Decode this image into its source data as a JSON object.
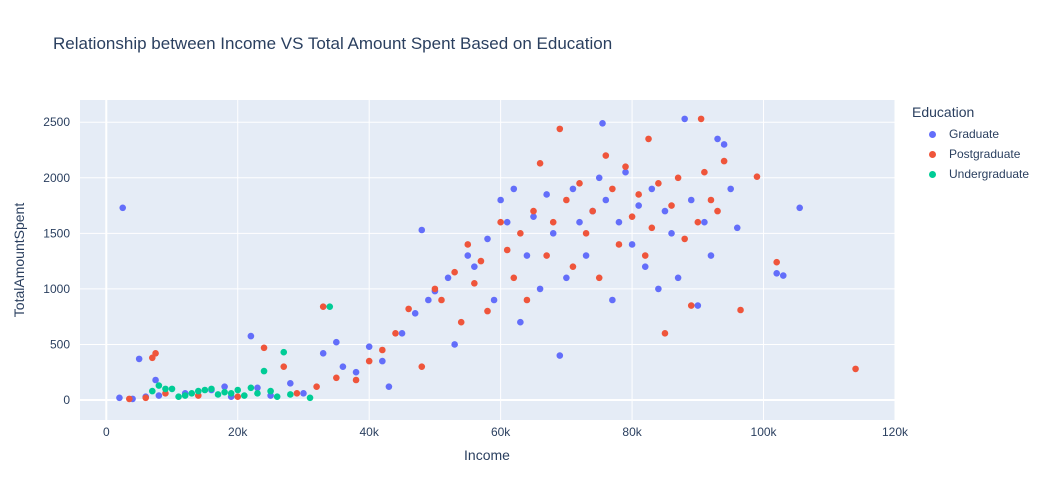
{
  "chart_data": {
    "type": "scatter",
    "title": "Relationship between Income VS Total Amount Spent Based on Education",
    "xlabel": "Income",
    "ylabel": "TotalAmountSpent",
    "xlim": [
      -4000,
      120000
    ],
    "ylim": [
      -180,
      2700
    ],
    "xticks": [
      0,
      20000,
      40000,
      60000,
      80000,
      100000,
      120000
    ],
    "xtick_labels": [
      "0",
      "20k",
      "40k",
      "60k",
      "80k",
      "100k",
      "120k"
    ],
    "yticks": [
      0,
      500,
      1000,
      1500,
      2000,
      2500
    ],
    "ytick_labels": [
      "0",
      "500",
      "1000",
      "1500",
      "2000",
      "2500"
    ],
    "grid": true,
    "legend": {
      "title": "Education",
      "position": "right"
    },
    "series": [
      {
        "name": "Graduate",
        "color": "#636efa",
        "points": [
          [
            2000,
            20
          ],
          [
            2500,
            1730
          ],
          [
            4000,
            10
          ],
          [
            5000,
            370
          ],
          [
            6000,
            30
          ],
          [
            7500,
            180
          ],
          [
            8000,
            40
          ],
          [
            12000,
            60
          ],
          [
            16000,
            90
          ],
          [
            18000,
            120
          ],
          [
            19000,
            30
          ],
          [
            22000,
            575
          ],
          [
            23000,
            110
          ],
          [
            25000,
            40
          ],
          [
            28000,
            150
          ],
          [
            30000,
            60
          ],
          [
            33000,
            420
          ],
          [
            35000,
            520
          ],
          [
            36000,
            300
          ],
          [
            38000,
            250
          ],
          [
            40000,
            480
          ],
          [
            42000,
            350
          ],
          [
            43000,
            120
          ],
          [
            45000,
            600
          ],
          [
            47000,
            780
          ],
          [
            48000,
            1530
          ],
          [
            49000,
            900
          ],
          [
            50000,
            980
          ],
          [
            52000,
            1100
          ],
          [
            53000,
            500
          ],
          [
            55000,
            1300
          ],
          [
            56000,
            1200
          ],
          [
            58000,
            1450
          ],
          [
            59000,
            900
          ],
          [
            60000,
            1800
          ],
          [
            61000,
            1600
          ],
          [
            62000,
            1900
          ],
          [
            63000,
            700
          ],
          [
            64000,
            1300
          ],
          [
            65000,
            1650
          ],
          [
            66000,
            1000
          ],
          [
            67000,
            1850
          ],
          [
            68000,
            1500
          ],
          [
            69000,
            400
          ],
          [
            70000,
            1100
          ],
          [
            71000,
            1900
          ],
          [
            72000,
            1600
          ],
          [
            73000,
            1300
          ],
          [
            74000,
            1700
          ],
          [
            75000,
            2000
          ],
          [
            75500,
            2490
          ],
          [
            76000,
            1800
          ],
          [
            77000,
            900
          ],
          [
            78000,
            1600
          ],
          [
            79000,
            2050
          ],
          [
            80000,
            1400
          ],
          [
            81000,
            1750
          ],
          [
            82000,
            1200
          ],
          [
            83000,
            1900
          ],
          [
            84000,
            1000
          ],
          [
            85000,
            1700
          ],
          [
            86000,
            1500
          ],
          [
            87000,
            1100
          ],
          [
            88000,
            2530
          ],
          [
            89000,
            1800
          ],
          [
            90000,
            850
          ],
          [
            91000,
            1600
          ],
          [
            92000,
            1300
          ],
          [
            93000,
            2350
          ],
          [
            94000,
            2300
          ],
          [
            95000,
            1900
          ],
          [
            96000,
            1550
          ],
          [
            102000,
            1140
          ],
          [
            103000,
            1120
          ],
          [
            105500,
            1730
          ]
        ]
      },
      {
        "name": "Postgraduate",
        "color": "#ef553b",
        "points": [
          [
            3500,
            10
          ],
          [
            6000,
            20
          ],
          [
            7000,
            380
          ],
          [
            7500,
            420
          ],
          [
            9000,
            60
          ],
          [
            14000,
            40
          ],
          [
            20000,
            30
          ],
          [
            24000,
            470
          ],
          [
            27000,
            300
          ],
          [
            29000,
            60
          ],
          [
            32000,
            120
          ],
          [
            33000,
            840
          ],
          [
            35000,
            200
          ],
          [
            38000,
            180
          ],
          [
            40000,
            350
          ],
          [
            42000,
            450
          ],
          [
            44000,
            600
          ],
          [
            46000,
            820
          ],
          [
            48000,
            300
          ],
          [
            50000,
            1000
          ],
          [
            51000,
            900
          ],
          [
            53000,
            1150
          ],
          [
            54000,
            700
          ],
          [
            55000,
            1400
          ],
          [
            56000,
            1050
          ],
          [
            57000,
            1250
          ],
          [
            58000,
            800
          ],
          [
            60000,
            1600
          ],
          [
            61000,
            1350
          ],
          [
            62000,
            1100
          ],
          [
            63000,
            1500
          ],
          [
            64000,
            900
          ],
          [
            65000,
            1700
          ],
          [
            66000,
            2130
          ],
          [
            67000,
            1300
          ],
          [
            68000,
            1600
          ],
          [
            69000,
            2440
          ],
          [
            70000,
            1800
          ],
          [
            71000,
            1200
          ],
          [
            72000,
            1950
          ],
          [
            73000,
            1500
          ],
          [
            74000,
            1700
          ],
          [
            75000,
            1100
          ],
          [
            76000,
            2200
          ],
          [
            77000,
            1900
          ],
          [
            78000,
            1400
          ],
          [
            79000,
            2100
          ],
          [
            80000,
            1650
          ],
          [
            81000,
            1850
          ],
          [
            82000,
            1300
          ],
          [
            82500,
            2350
          ],
          [
            83000,
            1550
          ],
          [
            84000,
            1950
          ],
          [
            85000,
            600
          ],
          [
            86000,
            1750
          ],
          [
            87000,
            2000
          ],
          [
            88000,
            1450
          ],
          [
            89000,
            850
          ],
          [
            90000,
            1600
          ],
          [
            90500,
            2530
          ],
          [
            91000,
            2050
          ],
          [
            92000,
            1800
          ],
          [
            93000,
            1700
          ],
          [
            94000,
            2150
          ],
          [
            96500,
            810
          ],
          [
            99000,
            2010
          ],
          [
            102000,
            1240
          ],
          [
            114000,
            280
          ]
        ]
      },
      {
        "name": "Undergraduate",
        "color": "#00cc96",
        "points": [
          [
            7000,
            80
          ],
          [
            8000,
            130
          ],
          [
            9000,
            100
          ],
          [
            10000,
            100
          ],
          [
            11000,
            30
          ],
          [
            12000,
            40
          ],
          [
            13000,
            60
          ],
          [
            14000,
            80
          ],
          [
            15000,
            90
          ],
          [
            16000,
            100
          ],
          [
            17000,
            50
          ],
          [
            18000,
            70
          ],
          [
            19000,
            60
          ],
          [
            20000,
            90
          ],
          [
            21000,
            40
          ],
          [
            22000,
            110
          ],
          [
            23000,
            60
          ],
          [
            24000,
            260
          ],
          [
            25000,
            80
          ],
          [
            26000,
            30
          ],
          [
            27000,
            430
          ],
          [
            28000,
            50
          ],
          [
            31000,
            20
          ],
          [
            34000,
            840
          ]
        ]
      }
    ]
  }
}
